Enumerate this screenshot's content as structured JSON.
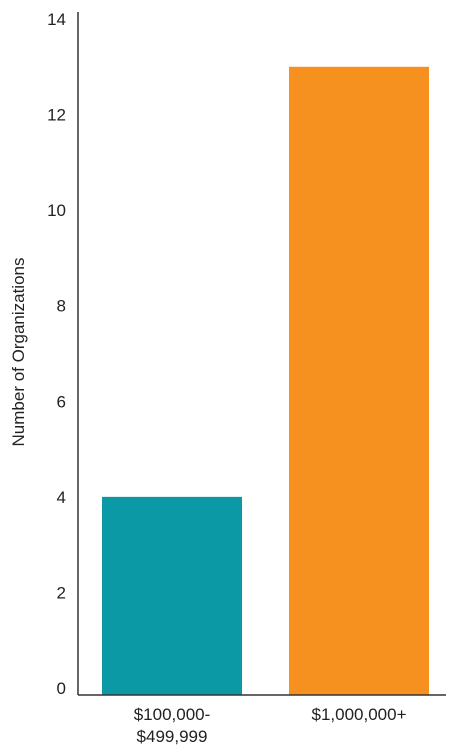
{
  "chart_data": {
    "type": "bar",
    "title": "",
    "xlabel": "",
    "ylabel": "Number of Organizations",
    "categories": [
      [
        "$100,000-",
        "$499,999"
      ],
      [
        "$1,000,000+"
      ]
    ],
    "values": [
      4,
      13
    ],
    "colors": [
      "#0b9aa5",
      "#f6901e"
    ],
    "ylim": [
      0,
      14
    ],
    "yticks": [
      "0",
      "2",
      "4",
      "6",
      "8",
      "10",
      "12",
      "14"
    ],
    "grid": false,
    "legend": "none"
  }
}
